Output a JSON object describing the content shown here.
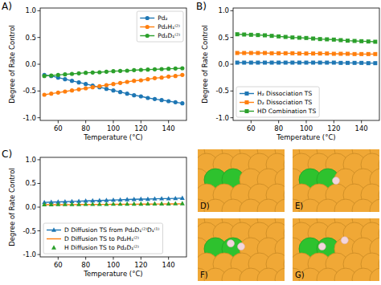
{
  "chart_data": [
    {
      "type": "line",
      "title": "A)",
      "x_label": "Temperature (°C)",
      "y_label": "Degree of Rate Control",
      "x": [
        50,
        55,
        60,
        65,
        70,
        75,
        80,
        85,
        90,
        95,
        100,
        105,
        110,
        115,
        120,
        125,
        130,
        135,
        140,
        145,
        150
      ],
      "xlim": [
        47,
        153
      ],
      "xticks": [
        60,
        80,
        100,
        120,
        140
      ],
      "ylim": [
        -1.05,
        1.05
      ],
      "yticks": [
        {
          "value": -1,
          "label": "-1.0"
        },
        -0.5,
        {
          "value": 0,
          "label": "0.0"
        },
        0.5,
        {
          "value": 1,
          "label": "1.0"
        }
      ],
      "legend": "upper right",
      "grid": false,
      "series": [
        {
          "name": "Pd₂",
          "color": "#1f77b4",
          "marker": "circle",
          "line_style": "solid",
          "values": [
            -0.2,
            -0.22,
            -0.25,
            -0.28,
            -0.31,
            -0.34,
            -0.37,
            -0.4,
            -0.43,
            -0.46,
            -0.49,
            -0.52,
            -0.55,
            -0.58,
            -0.6,
            -0.63,
            -0.65,
            -0.67,
            -0.69,
            -0.71,
            -0.73
          ]
        },
        {
          "name": "Pd₂H₁⁽²⁾",
          "color": "#ff7f0e",
          "marker": "circle",
          "line_style": "solid",
          "values": [
            -0.57,
            -0.55,
            -0.53,
            -0.51,
            -0.49,
            -0.47,
            -0.45,
            -0.43,
            -0.41,
            -0.39,
            -0.37,
            -0.35,
            -0.33,
            -0.31,
            -0.3,
            -0.28,
            -0.26,
            -0.25,
            -0.23,
            -0.22,
            -0.2
          ]
        },
        {
          "name": "Pd₂D₁⁽²⁾",
          "color": "#2ca02c",
          "marker": "circle",
          "line_style": "solid",
          "values": [
            -0.22,
            -0.21,
            -0.2,
            -0.19,
            -0.18,
            -0.17,
            -0.16,
            -0.155,
            -0.15,
            -0.14,
            -0.13,
            -0.125,
            -0.12,
            -0.11,
            -0.105,
            -0.1,
            -0.095,
            -0.09,
            -0.085,
            -0.08,
            -0.075
          ]
        }
      ]
    },
    {
      "type": "line",
      "title": "B)",
      "x_label": "Temperature (°C)",
      "y_label": "Degree of Rate Control",
      "x": [
        50,
        55,
        60,
        65,
        70,
        75,
        80,
        85,
        90,
        95,
        100,
        105,
        110,
        115,
        120,
        125,
        130,
        135,
        140,
        145,
        150
      ],
      "xlim": [
        47,
        153
      ],
      "xticks": [
        60,
        80,
        100,
        120,
        140
      ],
      "ylim": [
        -1.05,
        1.05
      ],
      "yticks": [
        {
          "value": -1,
          "label": "-1.0"
        },
        -0.5,
        {
          "value": 0,
          "label": "0.0"
        },
        0.5,
        {
          "value": 1,
          "label": "1.0"
        }
      ],
      "legend": "lower left",
      "grid": false,
      "series": [
        {
          "name": "H₂ Dissociation TS",
          "color": "#1f77b4",
          "marker": "square",
          "line_style": "solid",
          "values": [
            0.03,
            0.03,
            0.03,
            0.03,
            0.03,
            0.03,
            0.03,
            0.03,
            0.03,
            0.03,
            0.03,
            0.03,
            0.03,
            0.03,
            0.03,
            0.025,
            0.025,
            0.025,
            0.025,
            0.02,
            0.02
          ]
        },
        {
          "name": "D₂ Dissociation TS",
          "color": "#ff7f0e",
          "marker": "square",
          "line_style": "solid",
          "values": [
            0.21,
            0.21,
            0.21,
            0.21,
            0.21,
            0.205,
            0.205,
            0.205,
            0.205,
            0.2,
            0.2,
            0.2,
            0.2,
            0.2,
            0.195,
            0.195,
            0.195,
            0.19,
            0.19,
            0.19,
            0.19
          ]
        },
        {
          "name": "HD Combination TS",
          "color": "#2ca02c",
          "marker": "square",
          "line_style": "solid",
          "values": [
            0.56,
            0.555,
            0.55,
            0.545,
            0.54,
            0.53,
            0.52,
            0.51,
            0.5,
            0.495,
            0.49,
            0.48,
            0.47,
            0.465,
            0.46,
            0.45,
            0.44,
            0.435,
            0.43,
            0.425,
            0.42
          ]
        }
      ]
    },
    {
      "type": "line",
      "title": "C)",
      "x_label": "Temperature (°C)",
      "y_label": "Degree of Rate Control",
      "x": [
        50,
        55,
        60,
        65,
        70,
        75,
        80,
        85,
        90,
        95,
        100,
        105,
        110,
        115,
        120,
        125,
        130,
        135,
        140,
        145,
        150
      ],
      "xlim": [
        47,
        153
      ],
      "xticks": [
        60,
        80,
        100,
        120,
        140
      ],
      "ylim": [
        -1.05,
        1.05
      ],
      "yticks": [
        {
          "value": -1,
          "label": "-1.0"
        },
        -0.5,
        {
          "value": 0,
          "label": "0.0"
        },
        0.5,
        {
          "value": 1,
          "label": "1.0"
        }
      ],
      "legend": "lower left",
      "grid": false,
      "series": [
        {
          "name": "D Diffusion TS from Pd₂D₁⁽²⁾D₁⁽¹⁾",
          "color": "#1f77b4",
          "marker": "triangle",
          "line_style": "solid",
          "values": [
            0.1,
            0.105,
            0.11,
            0.115,
            0.12,
            0.125,
            0.13,
            0.135,
            0.14,
            0.145,
            0.15,
            0.155,
            0.16,
            0.165,
            0.17,
            0.17,
            0.175,
            0.18,
            0.18,
            0.185,
            0.19
          ]
        },
        {
          "name": "D Diffusion TS to Pd₂H₁⁽²⁾",
          "color": "#ff7f0e",
          "marker": "none",
          "line_style": "solid",
          "values": [
            0.05,
            0.05,
            0.051,
            0.052,
            0.053,
            0.054,
            0.055,
            0.056,
            0.057,
            0.058,
            0.059,
            0.06,
            0.061,
            0.062,
            0.063,
            0.064,
            0.065,
            0.066,
            0.067,
            0.068,
            0.07
          ]
        },
        {
          "name": "H Diffusion TS to Pd₂D₁⁽²⁾",
          "color": "#2ca02c",
          "marker": "triangle",
          "line_style": "none",
          "values": [
            0.055,
            0.056,
            0.057,
            0.058,
            0.059,
            0.06,
            0.061,
            0.062,
            0.063,
            0.064,
            0.065,
            0.066,
            0.067,
            0.068,
            0.069,
            0.07,
            0.071,
            0.072,
            0.073,
            0.074,
            0.075
          ]
        }
      ]
    }
  ],
  "images": [
    {
      "label": "D)"
    },
    {
      "label": "E)"
    },
    {
      "label": "F)"
    },
    {
      "label": "G)"
    }
  ]
}
